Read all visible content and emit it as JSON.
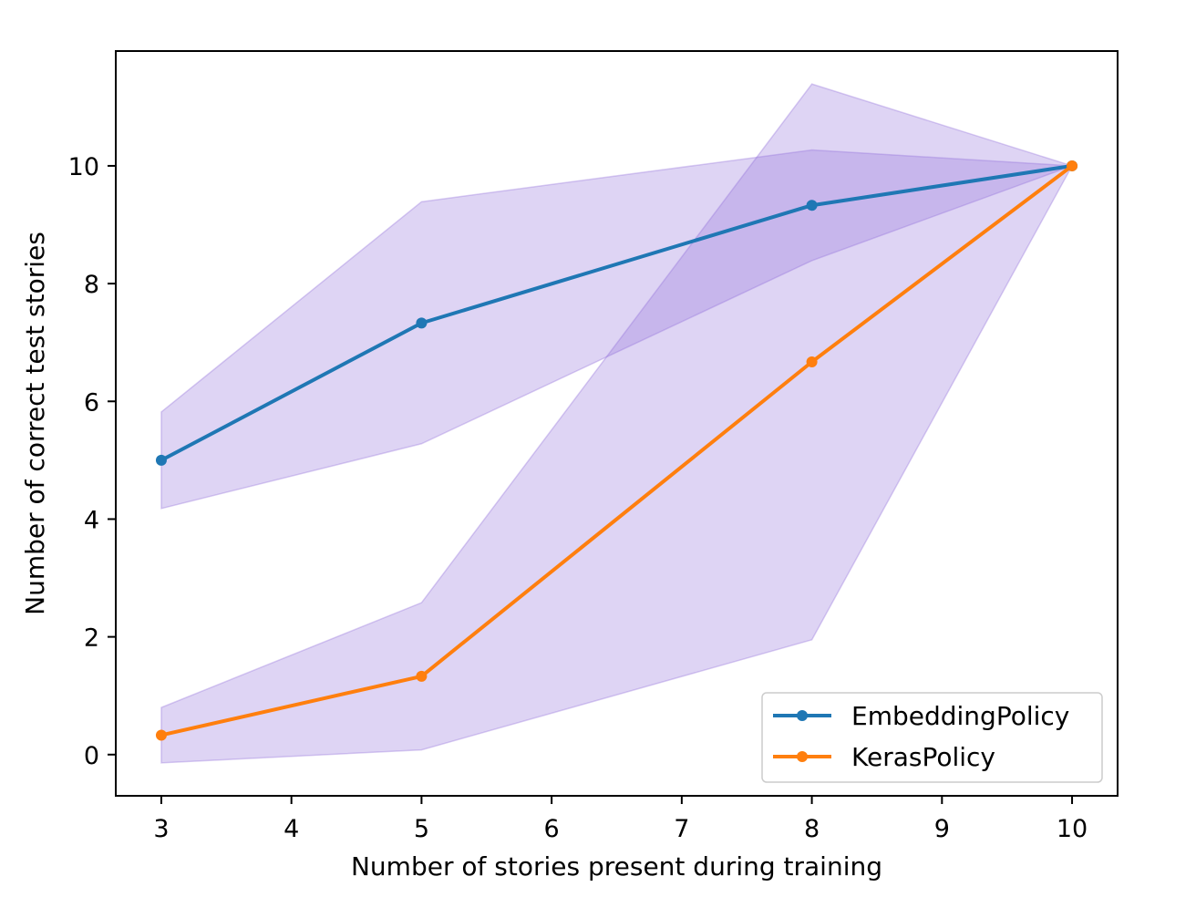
{
  "chart_data": {
    "type": "line",
    "title": "",
    "xlabel": "Number of stories present during training",
    "ylabel": "Number of correct test stories",
    "x": [
      3,
      5,
      8,
      10
    ],
    "xlim": [
      2.65,
      10.35
    ],
    "ylim": [
      -0.7,
      11.95
    ],
    "xticks": [
      3,
      4,
      5,
      6,
      7,
      8,
      9,
      10
    ],
    "yticks": [
      0,
      2,
      4,
      6,
      8,
      10
    ],
    "grid": false,
    "legend_position": "lower-right",
    "band_color": "#9370db",
    "series": [
      {
        "name": "EmbeddingPolicy",
        "color": "#1f77b4",
        "values": [
          5.0,
          7.33,
          9.33,
          10.0
        ],
        "lower": [
          4.18,
          5.28,
          8.39,
          10.0
        ],
        "upper": [
          5.82,
          9.39,
          10.27,
          10.0
        ]
      },
      {
        "name": "KerasPolicy",
        "color": "#ff7f0e",
        "values": [
          0.33,
          1.33,
          6.67,
          10.0
        ],
        "lower": [
          -0.14,
          0.08,
          1.95,
          10.0
        ],
        "upper": [
          0.8,
          2.58,
          11.39,
          10.0
        ]
      }
    ]
  }
}
